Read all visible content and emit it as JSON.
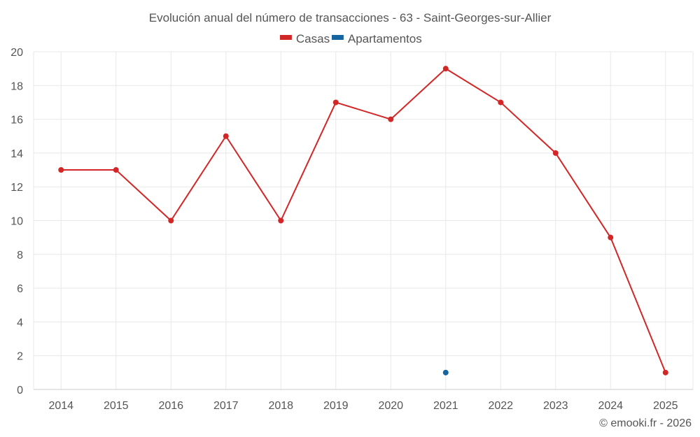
{
  "chart_data": {
    "type": "line",
    "title": "Evolución anual del número de transacciones - 63 - Saint-Georges-sur-Allier",
    "categories": [
      "2014",
      "2015",
      "2016",
      "2017",
      "2018",
      "2019",
      "2020",
      "2021",
      "2022",
      "2023",
      "2024",
      "2025"
    ],
    "series": [
      {
        "name": "Casas",
        "color": "#d32626",
        "values": [
          13,
          13,
          10,
          15,
          10,
          17,
          16,
          19,
          17,
          14,
          9,
          1
        ]
      },
      {
        "name": "Apartamentos",
        "color": "#1565a0",
        "values": [
          null,
          null,
          null,
          null,
          null,
          null,
          null,
          1,
          null,
          null,
          null,
          null
        ]
      }
    ],
    "ylim": [
      0,
      20
    ],
    "yticks": [
      0,
      2,
      4,
      6,
      8,
      10,
      12,
      14,
      16,
      18,
      20
    ],
    "grid": true,
    "legend_position": "top-center",
    "xlabel": "",
    "ylabel": ""
  },
  "credit": "© emooki.fr - 2026"
}
